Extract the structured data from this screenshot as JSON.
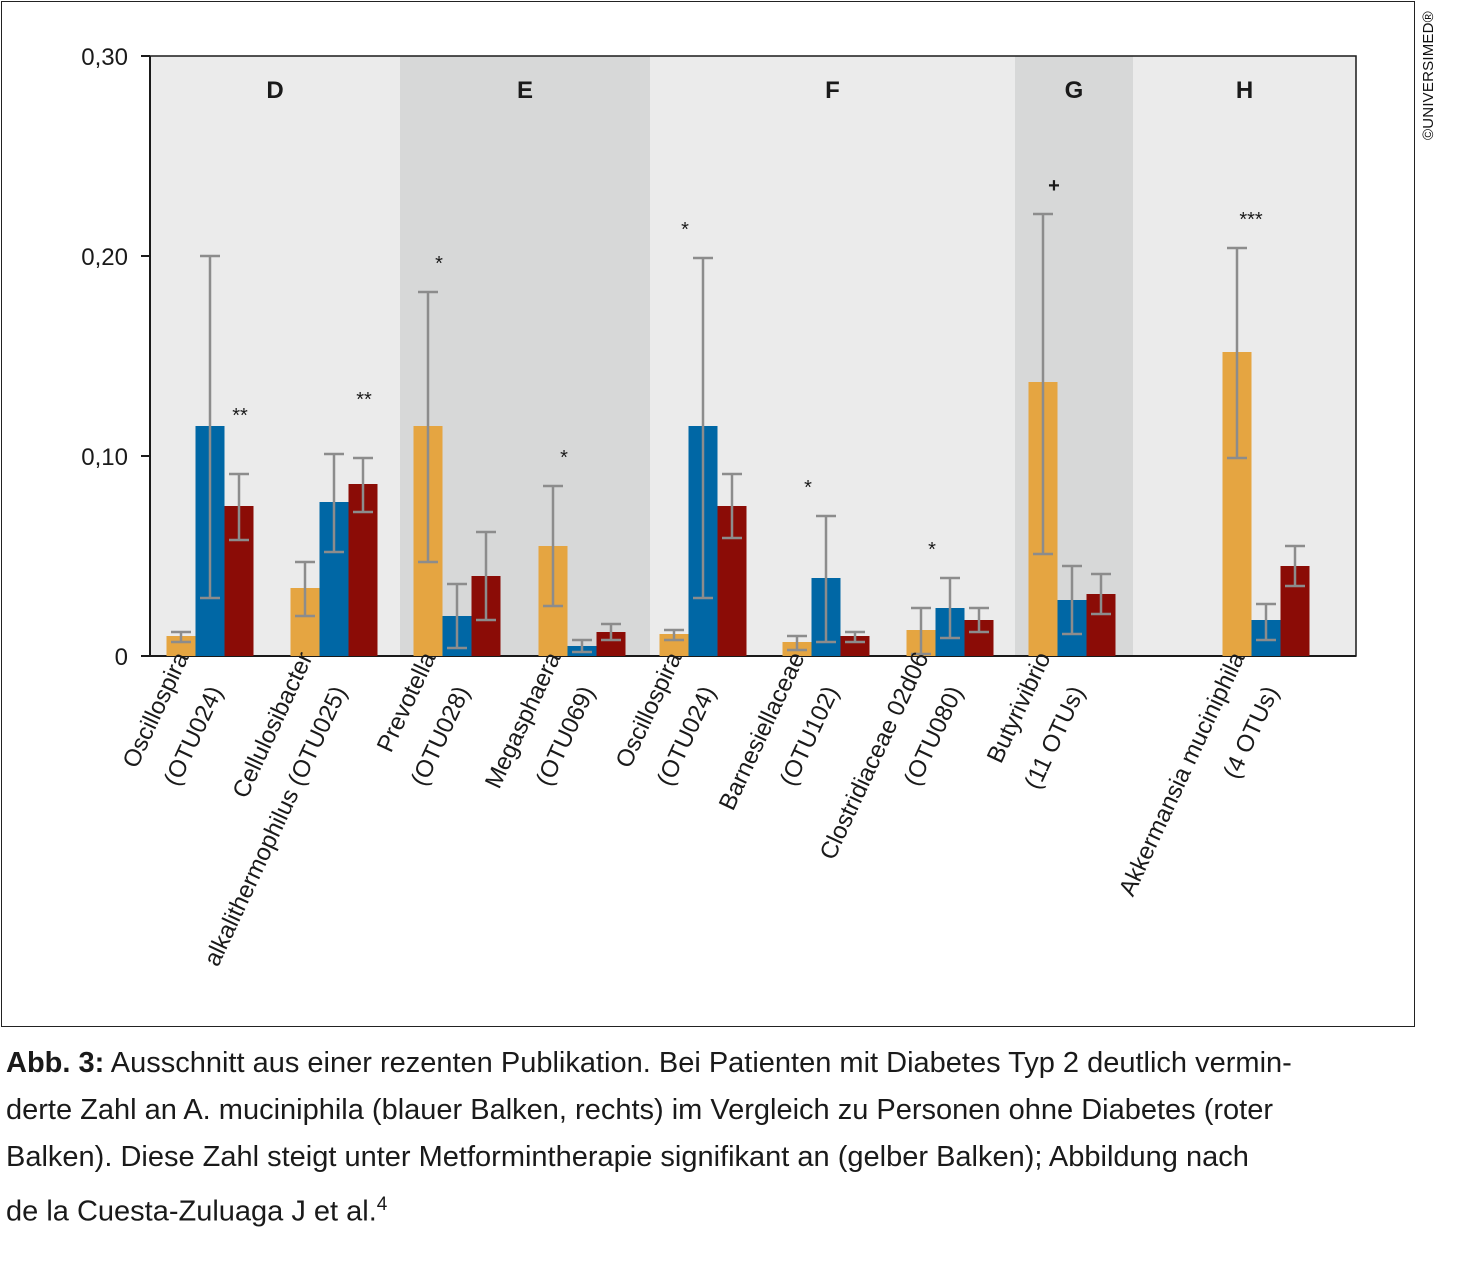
{
  "copyright": "©UNIVERSIMED®",
  "caption": {
    "label": "Abb. 3:",
    "line1": "Ausschnitt aus einer rezenten Publikation. Bei Patienten mit Diabetes Typ 2 deutlich vermin-",
    "line2": "derte Zahl an A. muciniphila (blauer Balken, rechts) im Vergleich zu Personen ohne Diabetes (roter",
    "line3": "Balken). Diese Zahl steigt unter Metformintherapie signifikant an (gelber Balken); Abbildung nach",
    "line4": "de la Cuesta-Zuluaga J et al.",
    "superscript": "4"
  },
  "chart_data": {
    "type": "bar",
    "ylim": [
      0,
      0.3
    ],
    "yticks": [
      0,
      0.1,
      0.2,
      0.3
    ],
    "yticklabels": [
      "0",
      "0,10",
      "0,20",
      "0,30"
    ],
    "grid": false,
    "colors": {
      "yellow": "#e5a541",
      "blue": "#0067a5",
      "red": "#8b0c06",
      "panel_light": "#ebebeb",
      "panel_dark": "#d7d8d8",
      "errorbar": "#8c8c8c"
    },
    "groups": [
      {
        "label": "D",
        "shade": "light",
        "categories": [
          0,
          1
        ]
      },
      {
        "label": "E",
        "shade": "dark",
        "categories": [
          2,
          3
        ]
      },
      {
        "label": "F",
        "shade": "light",
        "categories": [
          4,
          5,
          6
        ]
      },
      {
        "label": "G",
        "shade": "dark",
        "categories": [
          7
        ]
      },
      {
        "label": "H",
        "shade": "light",
        "categories": [
          8
        ]
      }
    ],
    "categories": [
      {
        "lines": [
          "Oscillospira",
          "(OTU024)"
        ],
        "significance": "**",
        "values": [
          0.01,
          0.115,
          0.075
        ],
        "err_low": [
          0.007,
          0.029,
          0.058
        ],
        "err_high": [
          0.012,
          0.2,
          0.091
        ]
      },
      {
        "lines": [
          "Cellulosibacter",
          "alkalithermophilus (OTU025)"
        ],
        "significance": "**",
        "values": [
          0.034,
          0.077,
          0.086
        ],
        "err_low": [
          0.02,
          0.052,
          0.072
        ],
        "err_high": [
          0.047,
          0.101,
          0.099
        ]
      },
      {
        "lines": [
          "Prevotella",
          "(OTU028)"
        ],
        "significance": "*",
        "values": [
          0.115,
          0.02,
          0.04
        ],
        "err_low": [
          0.047,
          0.004,
          0.018
        ],
        "err_high": [
          0.182,
          0.036,
          0.062
        ]
      },
      {
        "lines": [
          "Megasphaera",
          "(OTU069)"
        ],
        "significance": "*",
        "values": [
          0.055,
          0.005,
          0.012
        ],
        "err_low": [
          0.025,
          0.002,
          0.008
        ],
        "err_high": [
          0.085,
          0.008,
          0.016
        ]
      },
      {
        "lines": [
          "Oscillospira",
          "(OTU024)"
        ],
        "significance": "*",
        "values": [
          0.011,
          0.115,
          0.075
        ],
        "err_low": [
          0.008,
          0.029,
          0.059
        ],
        "err_high": [
          0.013,
          0.199,
          0.091
        ]
      },
      {
        "lines": [
          "Barnesiellaceae",
          "(OTU102)"
        ],
        "significance": "*",
        "values": [
          0.007,
          0.039,
          0.01
        ],
        "err_low": [
          0.003,
          0.007,
          0.007
        ],
        "err_high": [
          0.01,
          0.07,
          0.012
        ]
      },
      {
        "lines": [
          "Clostridiaceae 02d06",
          "(OTU080)"
        ],
        "significance": "*",
        "values": [
          0.013,
          0.024,
          0.018
        ],
        "err_low": [
          0.001,
          0.009,
          0.012
        ],
        "err_high": [
          0.024,
          0.039,
          0.024
        ]
      },
      {
        "lines": [
          "Butyrivibrio",
          "(11 OTUs)"
        ],
        "significance": "+",
        "values": [
          0.137,
          0.028,
          0.031
        ],
        "err_low": [
          0.051,
          0.011,
          0.021
        ],
        "err_high": [
          0.221,
          0.045,
          0.041
        ]
      },
      {
        "lines": [
          "Akkermansia muciniphila",
          "(4 OTUs)"
        ],
        "significance": "***",
        "values": [
          0.152,
          0.018,
          0.045
        ],
        "err_low": [
          0.099,
          0.008,
          0.035
        ],
        "err_high": [
          0.204,
          0.026,
          0.055
        ]
      }
    ]
  }
}
